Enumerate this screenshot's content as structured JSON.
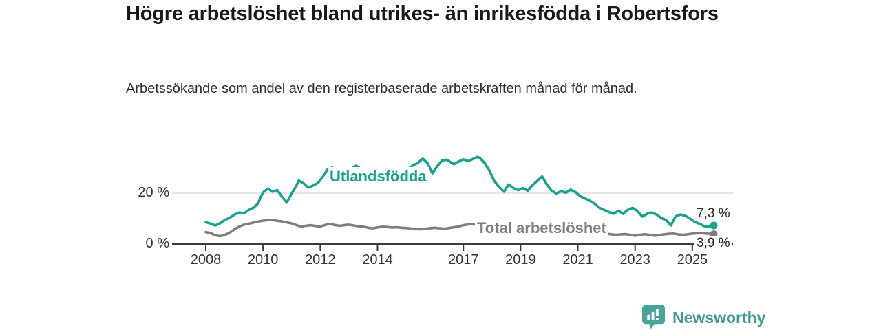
{
  "header": {
    "title": "Högre arbetslöshet bland utrikes- än inrikesfödda i Robertsfors",
    "subtitle": "Arbetssökande som andel av den registerbaserade arbetskraften månad för månad."
  },
  "chart_data": {
    "type": "line",
    "title": "Högre arbetslöshet bland utrikes- än inrikesfödda i Robertsfors",
    "subtitle": "Arbetssökande som andel av den registerbaserade arbetskraften månad för månad.",
    "unit": "%",
    "x_ticks": [
      2008,
      2010,
      2012,
      2014,
      2017,
      2019,
      2021,
      2023,
      2025
    ],
    "x_tick_labels": [
      "2008",
      "2010",
      "2012",
      "2014",
      "2017",
      "2019",
      "2021",
      "2023",
      "2025"
    ],
    "y_ticks": [
      0,
      20
    ],
    "y_tick_labels": [
      "0 %",
      "20 %"
    ],
    "ylim": [
      0,
      36
    ],
    "xlim": [
      2006.8,
      2026.4
    ],
    "gridline_y": 20,
    "legend_position": "inline-labels",
    "grid": "horizontal-only",
    "series": [
      {
        "name": "Utlandsfödda",
        "color": "#17A28D",
        "end_label": "7,3 %",
        "end_value": 7.3,
        "points": [
          [
            2008.0,
            8.6
          ],
          [
            2008.17,
            8.0
          ],
          [
            2008.33,
            7.3
          ],
          [
            2008.5,
            8.2
          ],
          [
            2008.67,
            9.5
          ],
          [
            2008.83,
            10.3
          ],
          [
            2009.0,
            11.6
          ],
          [
            2009.17,
            12.4
          ],
          [
            2009.33,
            12.1
          ],
          [
            2009.5,
            13.4
          ],
          [
            2009.67,
            14.3
          ],
          [
            2009.83,
            16.0
          ],
          [
            2009.92,
            18.5
          ],
          [
            2010.0,
            20.3
          ],
          [
            2010.17,
            21.8
          ],
          [
            2010.33,
            20.6
          ],
          [
            2010.5,
            21.2
          ],
          [
            2010.67,
            18.5
          ],
          [
            2010.83,
            16.3
          ],
          [
            2011.0,
            19.8
          ],
          [
            2011.17,
            23.0
          ],
          [
            2011.25,
            25.0
          ],
          [
            2011.42,
            23.8
          ],
          [
            2011.58,
            22.2
          ],
          [
            2011.75,
            23.0
          ],
          [
            2011.92,
            24.0
          ],
          [
            2012.08,
            26.3
          ],
          [
            2012.25,
            29.3
          ],
          [
            2012.42,
            30.1
          ],
          [
            2012.58,
            28.4
          ],
          [
            2012.75,
            29.2
          ],
          [
            2012.92,
            28.2
          ],
          [
            2013.08,
            29.5
          ],
          [
            2013.25,
            30.8
          ],
          [
            2013.42,
            29.6
          ],
          [
            2013.58,
            28.2
          ],
          [
            2013.75,
            29.0
          ],
          [
            2013.92,
            29.8
          ],
          [
            2014.08,
            28.6
          ],
          [
            2014.25,
            26.0
          ],
          [
            2014.42,
            24.6
          ],
          [
            2014.58,
            26.2
          ],
          [
            2014.75,
            27.4
          ],
          [
            2014.92,
            28.3
          ],
          [
            2015.08,
            29.6
          ],
          [
            2015.25,
            31.0
          ],
          [
            2015.42,
            32.0
          ],
          [
            2015.58,
            33.6
          ],
          [
            2015.75,
            31.8
          ],
          [
            2015.92,
            27.8
          ],
          [
            2016.08,
            30.5
          ],
          [
            2016.25,
            32.8
          ],
          [
            2016.42,
            33.2
          ],
          [
            2016.58,
            32.0
          ],
          [
            2016.67,
            31.4
          ],
          [
            2016.83,
            32.4
          ],
          [
            2017.0,
            33.3
          ],
          [
            2017.17,
            32.6
          ],
          [
            2017.33,
            33.4
          ],
          [
            2017.5,
            34.3
          ],
          [
            2017.58,
            33.8
          ],
          [
            2017.75,
            31.8
          ],
          [
            2017.92,
            28.6
          ],
          [
            2018.08,
            24.8
          ],
          [
            2018.25,
            22.4
          ],
          [
            2018.42,
            20.6
          ],
          [
            2018.58,
            23.4
          ],
          [
            2018.75,
            22.0
          ],
          [
            2018.92,
            21.2
          ],
          [
            2019.08,
            22.0
          ],
          [
            2019.25,
            21.0
          ],
          [
            2019.42,
            23.2
          ],
          [
            2019.58,
            24.8
          ],
          [
            2019.75,
            26.6
          ],
          [
            2019.92,
            23.4
          ],
          [
            2020.08,
            21.0
          ],
          [
            2020.25,
            19.9
          ],
          [
            2020.42,
            20.8
          ],
          [
            2020.58,
            20.2
          ],
          [
            2020.75,
            21.4
          ],
          [
            2020.92,
            20.4
          ],
          [
            2021.08,
            18.8
          ],
          [
            2021.25,
            17.9
          ],
          [
            2021.42,
            17.0
          ],
          [
            2021.58,
            15.9
          ],
          [
            2021.75,
            14.3
          ],
          [
            2021.92,
            13.4
          ],
          [
            2022.08,
            12.6
          ],
          [
            2022.25,
            11.9
          ],
          [
            2022.42,
            13.1
          ],
          [
            2022.58,
            11.9
          ],
          [
            2022.75,
            13.5
          ],
          [
            2022.92,
            14.2
          ],
          [
            2023.08,
            13.0
          ],
          [
            2023.25,
            10.8
          ],
          [
            2023.42,
            11.9
          ],
          [
            2023.58,
            12.4
          ],
          [
            2023.75,
            11.6
          ],
          [
            2023.92,
            10.2
          ],
          [
            2024.08,
            9.5
          ],
          [
            2024.25,
            7.3
          ],
          [
            2024.42,
            10.9
          ],
          [
            2024.58,
            11.6
          ],
          [
            2024.75,
            11.2
          ],
          [
            2024.92,
            10.0
          ],
          [
            2025.08,
            8.7
          ],
          [
            2025.25,
            8.0
          ],
          [
            2025.42,
            7.0
          ],
          [
            2025.58,
            6.9
          ],
          [
            2025.75,
            7.3
          ]
        ]
      },
      {
        "name": "Total arbetslöshet",
        "color": "#7E7E7E",
        "end_label": "3,9 %",
        "end_value": 3.9,
        "points": [
          [
            2008.0,
            4.7
          ],
          [
            2008.17,
            4.3
          ],
          [
            2008.33,
            3.4
          ],
          [
            2008.5,
            3.1
          ],
          [
            2008.67,
            3.6
          ],
          [
            2008.83,
            4.4
          ],
          [
            2009.0,
            5.8
          ],
          [
            2009.17,
            6.9
          ],
          [
            2009.33,
            7.6
          ],
          [
            2009.5,
            8.0
          ],
          [
            2009.67,
            8.4
          ],
          [
            2009.83,
            8.8
          ],
          [
            2010.0,
            9.2
          ],
          [
            2010.17,
            9.4
          ],
          [
            2010.33,
            9.5
          ],
          [
            2010.5,
            9.1
          ],
          [
            2010.67,
            8.9
          ],
          [
            2010.83,
            8.5
          ],
          [
            2011.0,
            8.1
          ],
          [
            2011.17,
            7.4
          ],
          [
            2011.33,
            6.9
          ],
          [
            2011.5,
            7.2
          ],
          [
            2011.67,
            7.4
          ],
          [
            2011.83,
            7.1
          ],
          [
            2012.0,
            6.9
          ],
          [
            2012.17,
            7.5
          ],
          [
            2012.33,
            7.9
          ],
          [
            2012.5,
            7.5
          ],
          [
            2012.67,
            7.2
          ],
          [
            2012.83,
            7.4
          ],
          [
            2013.0,
            7.6
          ],
          [
            2013.17,
            7.3
          ],
          [
            2013.33,
            7.0
          ],
          [
            2013.5,
            6.8
          ],
          [
            2013.67,
            6.4
          ],
          [
            2013.83,
            6.2
          ],
          [
            2014.0,
            6.5
          ],
          [
            2014.17,
            6.8
          ],
          [
            2014.33,
            6.7
          ],
          [
            2014.5,
            6.5
          ],
          [
            2014.67,
            6.6
          ],
          [
            2014.83,
            6.4
          ],
          [
            2015.0,
            6.3
          ],
          [
            2015.17,
            6.1
          ],
          [
            2015.33,
            5.9
          ],
          [
            2015.5,
            5.8
          ],
          [
            2015.67,
            6.0
          ],
          [
            2015.83,
            6.2
          ],
          [
            2016.0,
            6.4
          ],
          [
            2016.17,
            6.2
          ],
          [
            2016.33,
            6.0
          ],
          [
            2016.5,
            6.3
          ],
          [
            2016.67,
            6.6
          ],
          [
            2016.83,
            6.9
          ],
          [
            2017.0,
            7.4
          ],
          [
            2017.17,
            7.7
          ],
          [
            2017.33,
            7.9
          ],
          [
            2017.5,
            7.6
          ],
          [
            2017.67,
            7.2
          ],
          [
            2017.83,
            6.9
          ],
          [
            2018.0,
            6.6
          ],
          [
            2018.25,
            6.3
          ],
          [
            2018.5,
            6.0
          ],
          [
            2018.75,
            5.8
          ],
          [
            2019.0,
            5.6
          ],
          [
            2019.25,
            5.4
          ],
          [
            2019.5,
            5.6
          ],
          [
            2019.75,
            5.9
          ],
          [
            2020.0,
            6.2
          ],
          [
            2020.25,
            6.4
          ],
          [
            2020.5,
            6.1
          ],
          [
            2020.75,
            5.7
          ],
          [
            2021.0,
            5.3
          ],
          [
            2021.25,
            5.0
          ],
          [
            2021.5,
            4.7
          ],
          [
            2021.75,
            4.4
          ],
          [
            2022.0,
            4.1
          ],
          [
            2022.17,
            3.8
          ],
          [
            2022.33,
            3.6
          ],
          [
            2022.5,
            3.8
          ],
          [
            2022.67,
            3.9
          ],
          [
            2022.83,
            3.6
          ],
          [
            2023.0,
            3.3
          ],
          [
            2023.17,
            3.6
          ],
          [
            2023.33,
            3.9
          ],
          [
            2023.5,
            3.6
          ],
          [
            2023.67,
            3.3
          ],
          [
            2023.83,
            3.5
          ],
          [
            2024.0,
            3.8
          ],
          [
            2024.17,
            4.0
          ],
          [
            2024.33,
            4.1
          ],
          [
            2024.5,
            3.8
          ],
          [
            2024.67,
            3.6
          ],
          [
            2024.83,
            3.8
          ],
          [
            2025.0,
            4.1
          ],
          [
            2025.17,
            4.2
          ],
          [
            2025.33,
            4.3
          ],
          [
            2025.5,
            4.1
          ],
          [
            2025.75,
            3.9
          ]
        ]
      }
    ]
  },
  "footer": {
    "brand": "Newsworthy",
    "brand_color": "#3E9B94",
    "logo_icon": "bar-chart-speech-bubble-icon"
  }
}
